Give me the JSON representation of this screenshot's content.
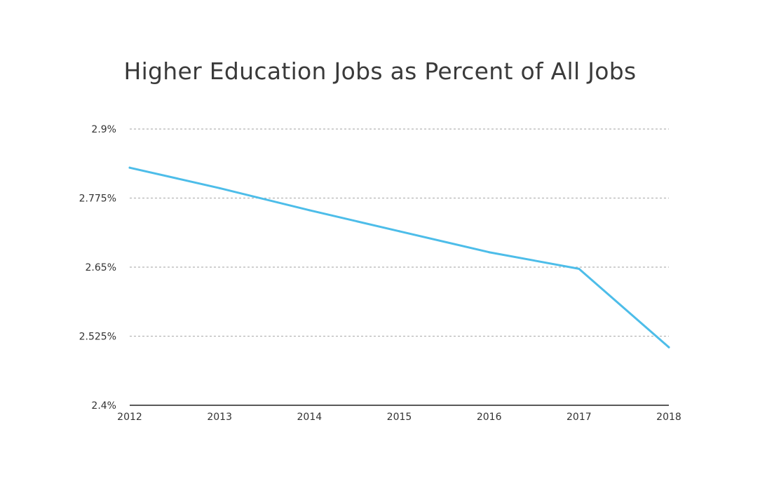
{
  "chart_data": {
    "type": "line",
    "title": "Higher Education Jobs as Percent of All Jobs",
    "xlabel": "",
    "ylabel": "",
    "categories": [
      "2012",
      "2013",
      "2014",
      "2015",
      "2016",
      "2017",
      "2018"
    ],
    "series": [
      {
        "values": [
          2.83,
          2.793,
          2.753,
          2.715,
          2.677,
          2.647,
          2.505
        ],
        "color": "#4dbde9"
      }
    ],
    "ylim": [
      2.4,
      2.9
    ],
    "yticks": [
      2.4,
      2.525,
      2.65,
      2.775,
      2.9
    ],
    "ytick_labels": [
      "2.4%",
      "2.525%",
      "2.65%",
      "2.775%",
      "2.9%"
    ],
    "grid": true,
    "legend": "none"
  }
}
